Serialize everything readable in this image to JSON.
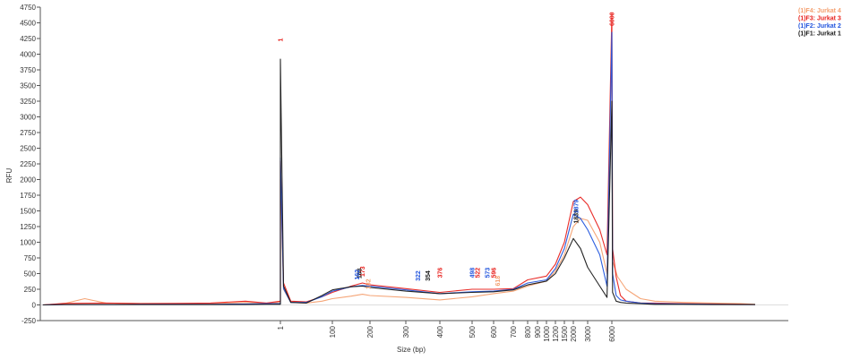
{
  "chart_data": {
    "type": "line",
    "title": "",
    "xlabel": "Size (bp)",
    "ylabel": "RFU",
    "ylim": [
      -250,
      4750
    ],
    "y_ticks": [
      -250,
      0,
      250,
      500,
      750,
      1000,
      1250,
      1500,
      1750,
      2000,
      2250,
      2500,
      2750,
      3000,
      3250,
      3500,
      3750,
      4000,
      4250,
      4500,
      4750
    ],
    "x_ticks": [
      "1",
      "100",
      "200",
      "300",
      "400",
      "500",
      "600",
      "700",
      "800",
      "900",
      "1000",
      "1200",
      "1500",
      "2000",
      "3000",
      "6000"
    ],
    "grid": false,
    "legend_position": "top-right",
    "colors": {
      "Jurkat 4": "#f4a070",
      "Jurkat 3": "#e8221e",
      "Jurkat 2": "#2255dd",
      "Jurkat 1": "#1a1a1a"
    },
    "legend": [
      "(1)F4: Jurkat 4",
      "(1)F3: Jurkat 3",
      "(1)F2: Jurkat 2",
      "(1)F1: Jurkat 1"
    ],
    "x_axis_kind": "sizing ladder (non-linear, bp)",
    "series": [
      {
        "name": "Jurkat 4",
        "points": [
          [
            -3.4,
            0
          ],
          [
            -3.1,
            20
          ],
          [
            -2.8,
            100
          ],
          [
            -2.5,
            30
          ],
          [
            -2.0,
            25
          ],
          [
            -1.0,
            20
          ],
          [
            -0.5,
            40
          ],
          [
            -0.2,
            30
          ],
          [
            0,
            40
          ],
          [
            0,
            2000
          ],
          [
            0.06,
            250
          ],
          [
            0.2,
            40
          ],
          [
            0.5,
            30
          ],
          [
            0.8,
            60
          ],
          [
            1.0,
            100
          ],
          [
            1.5,
            140
          ],
          [
            1.8,
            170
          ],
          [
            2.0,
            150
          ],
          [
            3.0,
            120
          ],
          [
            4.0,
            80
          ],
          [
            5.0,
            130
          ],
          [
            6.0,
            180
          ],
          [
            7.0,
            220
          ],
          [
            8.0,
            300
          ],
          [
            10.0,
            380
          ],
          [
            11.0,
            540
          ],
          [
            12.0,
            800
          ],
          [
            13.0,
            1250
          ],
          [
            13.5,
            1380
          ],
          [
            14.0,
            1350
          ],
          [
            14.5,
            1000
          ],
          [
            14.8,
            500
          ],
          [
            15.0,
            4200
          ],
          [
            15.05,
            700
          ],
          [
            15.4,
            450
          ],
          [
            16.0,
            250
          ],
          [
            17.0,
            100
          ],
          [
            18.0,
            60
          ],
          [
            20,
            40
          ],
          [
            22,
            30
          ],
          [
            24,
            20
          ],
          [
            25,
            10
          ]
        ]
      },
      {
        "name": "Jurkat 3",
        "points": [
          [
            -3.4,
            0
          ],
          [
            -3.1,
            25
          ],
          [
            -2.5,
            30
          ],
          [
            -2.0,
            20
          ],
          [
            -1.5,
            25
          ],
          [
            -1.0,
            30
          ],
          [
            -0.5,
            60
          ],
          [
            -0.2,
            30
          ],
          [
            0,
            60
          ],
          [
            0,
            2300
          ],
          [
            0.06,
            350
          ],
          [
            0.2,
            60
          ],
          [
            0.5,
            50
          ],
          [
            0.8,
            130
          ],
          [
            1.0,
            200
          ],
          [
            1.5,
            300
          ],
          [
            1.8,
            350
          ],
          [
            2.0,
            320
          ],
          [
            3.0,
            260
          ],
          [
            4.0,
            200
          ],
          [
            5.0,
            250
          ],
          [
            6.0,
            250
          ],
          [
            7.0,
            260
          ],
          [
            8.0,
            400
          ],
          [
            10.0,
            460
          ],
          [
            11.0,
            650
          ],
          [
            12.0,
            1000
          ],
          [
            13.0,
            1650
          ],
          [
            13.5,
            1720
          ],
          [
            14.0,
            1600
          ],
          [
            14.5,
            1200
          ],
          [
            14.8,
            800
          ],
          [
            15.0,
            4650
          ],
          [
            15.05,
            900
          ],
          [
            15.3,
            450
          ],
          [
            15.6,
            150
          ],
          [
            16.0,
            60
          ],
          [
            17.0,
            30
          ],
          [
            18,
            30
          ],
          [
            20,
            20
          ],
          [
            22,
            15
          ],
          [
            24,
            10
          ],
          [
            25,
            5
          ]
        ]
      },
      {
        "name": "Jurkat 2",
        "points": [
          [
            -3.4,
            0
          ],
          [
            -3.1,
            5
          ],
          [
            -2.5,
            5
          ],
          [
            -2.0,
            10
          ],
          [
            -1.0,
            10
          ],
          [
            -0.5,
            15
          ],
          [
            -0.2,
            20
          ],
          [
            0,
            20
          ],
          [
            0,
            2350
          ],
          [
            0.06,
            260
          ],
          [
            0.2,
            40
          ],
          [
            0.5,
            40
          ],
          [
            0.8,
            130
          ],
          [
            1.0,
            220
          ],
          [
            1.5,
            290
          ],
          [
            1.8,
            310
          ],
          [
            2.0,
            300
          ],
          [
            3.0,
            240
          ],
          [
            4.0,
            180
          ],
          [
            5.0,
            210
          ],
          [
            6.0,
            220
          ],
          [
            7.0,
            250
          ],
          [
            8.0,
            350
          ],
          [
            10.0,
            400
          ],
          [
            11.0,
            580
          ],
          [
            12.0,
            900
          ],
          [
            13.0,
            1450
          ],
          [
            13.5,
            1380
          ],
          [
            14.0,
            1200
          ],
          [
            14.5,
            800
          ],
          [
            14.8,
            300
          ],
          [
            15.0,
            4350
          ],
          [
            15.05,
            500
          ],
          [
            15.3,
            150
          ],
          [
            15.6,
            80
          ],
          [
            16.0,
            60
          ],
          [
            17.0,
            30
          ],
          [
            18,
            20
          ],
          [
            20,
            15
          ],
          [
            22,
            10
          ],
          [
            24,
            5
          ],
          [
            25,
            5
          ]
        ]
      },
      {
        "name": "Jurkat 1",
        "points": [
          [
            -3.4,
            0
          ],
          [
            -3.1,
            5
          ],
          [
            -2.5,
            5
          ],
          [
            -2.0,
            5
          ],
          [
            -1.0,
            5
          ],
          [
            -0.5,
            5
          ],
          [
            -0.2,
            10
          ],
          [
            0,
            10
          ],
          [
            0,
            3920
          ],
          [
            0.06,
            300
          ],
          [
            0.2,
            40
          ],
          [
            0.5,
            30
          ],
          [
            0.8,
            150
          ],
          [
            1.0,
            240
          ],
          [
            1.5,
            290
          ],
          [
            1.8,
            300
          ],
          [
            2.0,
            280
          ],
          [
            3.0,
            220
          ],
          [
            4.0,
            180
          ],
          [
            5.0,
            200
          ],
          [
            6.0,
            210
          ],
          [
            7.0,
            240
          ],
          [
            8.0,
            320
          ],
          [
            10.0,
            380
          ],
          [
            11.0,
            500
          ],
          [
            12.0,
            750
          ],
          [
            13.0,
            1060
          ],
          [
            13.5,
            900
          ],
          [
            14.0,
            600
          ],
          [
            14.5,
            300
          ],
          [
            14.8,
            120
          ],
          [
            15.0,
            3250
          ],
          [
            15.05,
            200
          ],
          [
            15.3,
            60
          ],
          [
            15.6,
            40
          ],
          [
            16.0,
            30
          ],
          [
            17.0,
            20
          ],
          [
            18,
            10
          ],
          [
            20,
            10
          ],
          [
            22,
            5
          ],
          [
            24,
            5
          ],
          [
            25,
            5
          ]
        ]
      }
    ],
    "peak_labels": [
      {
        "text": "1",
        "x": 0,
        "y": 4200,
        "series": "Jurkat 3"
      },
      {
        "text": "173",
        "x": 1.8,
        "y": 450,
        "series": "Jurkat 3"
      },
      {
        "text": "168",
        "x": 1.72,
        "y": 420,
        "series": "Jurkat 1"
      },
      {
        "text": "162",
        "x": 1.65,
        "y": 400,
        "series": "Jurkat 2"
      },
      {
        "text": "182",
        "x": 1.95,
        "y": 250,
        "series": "Jurkat 4"
      },
      {
        "text": "322",
        "x": 3.35,
        "y": 380,
        "series": "Jurkat 2"
      },
      {
        "text": "354",
        "x": 3.65,
        "y": 380,
        "series": "Jurkat 1"
      },
      {
        "text": "376",
        "x": 4.0,
        "y": 430,
        "series": "Jurkat 3"
      },
      {
        "text": "498",
        "x": 5.0,
        "y": 430,
        "series": "Jurkat 2"
      },
      {
        "text": "522",
        "x": 5.25,
        "y": 430,
        "series": "Jurkat 3"
      },
      {
        "text": "573",
        "x": 5.7,
        "y": 430,
        "series": "Jurkat 2"
      },
      {
        "text": "596",
        "x": 6.0,
        "y": 430,
        "series": "Jurkat 3"
      },
      {
        "text": "618",
        "x": 6.2,
        "y": 300,
        "series": "Jurkat 4"
      },
      {
        "text": "1839",
        "x": 13.2,
        "y": 1300,
        "series": "Jurkat 1"
      },
      {
        "text": "1879",
        "x": 13.2,
        "y": 1460,
        "series": "Jurkat 2"
      },
      {
        "text": "6000",
        "x": 15.0,
        "y": 4450,
        "series": "Jurkat 3"
      }
    ]
  }
}
